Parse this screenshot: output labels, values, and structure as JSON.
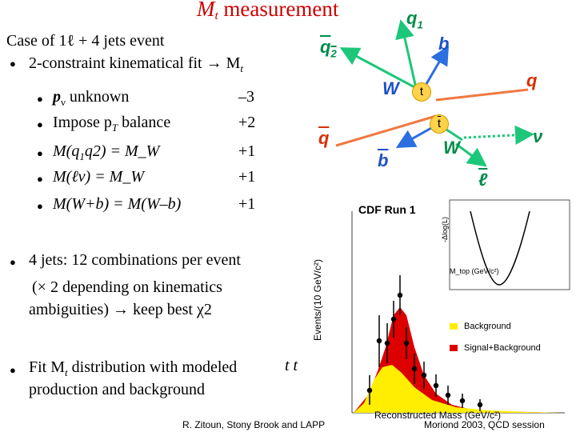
{
  "slide": {
    "title_main": "M",
    "title_sub": "t",
    "title_rest": "measurement",
    "case_line": "Case of 1ℓ + 4 jets event",
    "fit_line": "2-constraint kinematical fit → M",
    "fit_line_sub": "t",
    "constraints": [
      {
        "text": "p",
        "sub": "ν",
        "rest": " unknown",
        "value": "–3"
      },
      {
        "text": "Impose p",
        "sub": "T",
        "rest": " balance",
        "value": "+2"
      },
      {
        "text": "M(q",
        "sub": "1",
        "rest": "q2) = M_W",
        "value": "+1"
      },
      {
        "text": "M(ℓν)",
        "sub": "",
        "rest": "   = M_W",
        "value": "+1"
      },
      {
        "text": "M(W+b) = M(W–b)",
        "sub": "",
        "rest": "",
        "value": "+1"
      }
    ],
    "jets_line1": "4 jets: 12 combinations per event",
    "jets_line2": "(× 2 depending on kinematics",
    "jets_line3": "ambiguities) → keep best χ2",
    "fit_dist_line1": "Fit M",
    "fit_dist_sub": "t",
    "fit_dist_rest": " distribution with modeled",
    "fit_dist_line2": "production and background",
    "ttbar": "t t",
    "footer_left": "R. Zitoun, Stony Brook and LAPP",
    "footer_right": "Moriond 2003, QCD session"
  },
  "diagram": {
    "q1": "q",
    "q1_sub": "1",
    "q2": "q",
    "q2_sub": "2",
    "b": "b",
    "q": "q",
    "W1": "W",
    "t": "t",
    "tbar": "t",
    "qbar": "q",
    "bbar": "b",
    "W2": "W",
    "nu": "ν",
    "lbar": "ℓ"
  },
  "plot": {
    "label": "CDF Run 1",
    "xlabel": "Reconstructed Mass (GeV/c²)",
    "ylabel": "Events/(10 GeV/c²)",
    "inset_ylabel": "-Δlog(L)",
    "inset_xlabel": "M_top (GeV/c²)",
    "legend_background": "Background",
    "legend_signal": "Signal+Background",
    "colors": {
      "background": "#ffee00",
      "signal": "#dd0000"
    }
  }
}
